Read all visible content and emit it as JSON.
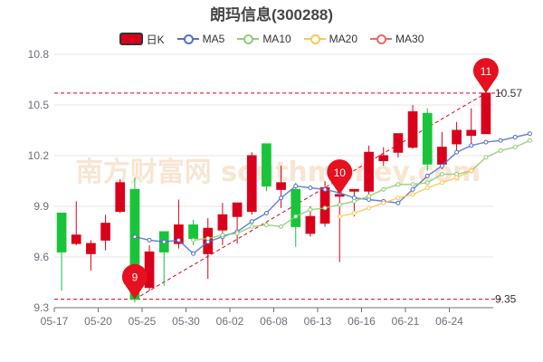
{
  "title": "朗玛信息(300288)",
  "legend": {
    "k": "日K",
    "ma5": "MA5",
    "ma10": "MA10",
    "ma20": "MA20",
    "ma30": "MA30"
  },
  "colors": {
    "up": "#d9001b",
    "down": "#19c43a",
    "ma5": "#5470c6",
    "ma10": "#91cc75",
    "ma20": "#fac858",
    "ma30": "#ee6666",
    "marker": "#e6101f"
  },
  "watermark": "南方财富网 southmoney.com",
  "chart_data": {
    "type": "candlestick",
    "title": "朗玛信息(300288)",
    "ylim": [
      9.3,
      10.8
    ],
    "yticks": [
      9.3,
      9.6,
      9.9,
      10.2,
      10.5,
      10.8
    ],
    "xtick_labels": [
      "05-17",
      "05-20",
      "05-25",
      "05-30",
      "06-02",
      "06-08",
      "06-13",
      "06-16",
      "06-21",
      "06-24"
    ],
    "xtick_index": [
      0,
      3,
      6,
      9,
      12,
      15,
      18,
      21,
      24,
      27
    ],
    "candles": [
      {
        "o": 9.86,
        "c": 9.63,
        "h": 9.86,
        "l": 9.4
      },
      {
        "o": 9.68,
        "c": 9.73,
        "h": 9.93,
        "l": 9.67
      },
      {
        "o": 9.62,
        "c": 9.68,
        "h": 9.7,
        "l": 9.52
      },
      {
        "o": 9.7,
        "c": 9.8,
        "h": 9.85,
        "l": 9.64
      },
      {
        "o": 9.87,
        "c": 10.04,
        "h": 10.06,
        "l": 9.86
      },
      {
        "o": 10.0,
        "c": 9.35,
        "h": 10.07,
        "l": 9.33
      },
      {
        "o": 9.42,
        "c": 9.63,
        "h": 9.67,
        "l": 9.4
      },
      {
        "o": 9.75,
        "c": 9.63,
        "h": 9.75,
        "l": 9.43
      },
      {
        "o": 9.68,
        "c": 9.79,
        "h": 9.94,
        "l": 9.65
      },
      {
        "o": 9.79,
        "c": 9.71,
        "h": 9.82,
        "l": 9.67
      },
      {
        "o": 9.62,
        "c": 9.77,
        "h": 9.83,
        "l": 9.47
      },
      {
        "o": 9.76,
        "c": 9.85,
        "h": 9.92,
        "l": 9.67
      },
      {
        "o": 9.84,
        "c": 9.92,
        "h": 9.92,
        "l": 9.68
      },
      {
        "o": 9.87,
        "c": 10.2,
        "h": 10.22,
        "l": 9.85
      },
      {
        "o": 10.27,
        "c": 10.02,
        "h": 10.27,
        "l": 9.99
      },
      {
        "o": 10.0,
        "c": 10.04,
        "h": 10.14,
        "l": 9.89
      },
      {
        "o": 10.0,
        "c": 9.78,
        "h": 10.04,
        "l": 9.66
      },
      {
        "o": 9.74,
        "c": 9.84,
        "h": 9.9,
        "l": 9.72
      },
      {
        "o": 9.8,
        "c": 10.01,
        "h": 10.05,
        "l": 9.78
      },
      {
        "o": 9.96,
        "c": 9.97,
        "h": 9.98,
        "l": 9.57
      },
      {
        "o": 9.99,
        "c": 10.0,
        "h": 10.0,
        "l": 9.84
      },
      {
        "o": 9.99,
        "c": 10.22,
        "h": 10.26,
        "l": 9.97
      },
      {
        "o": 10.17,
        "c": 10.2,
        "h": 10.25,
        "l": 10.14
      },
      {
        "o": 10.22,
        "c": 10.33,
        "h": 10.33,
        "l": 10.19
      },
      {
        "o": 10.25,
        "c": 10.46,
        "h": 10.5,
        "l": 10.24
      },
      {
        "o": 10.45,
        "c": 10.15,
        "h": 10.48,
        "l": 10.11
      },
      {
        "o": 10.15,
        "c": 10.25,
        "h": 10.34,
        "l": 10.12
      },
      {
        "o": 10.27,
        "c": 10.35,
        "h": 10.4,
        "l": 10.23
      },
      {
        "o": 10.32,
        "c": 10.35,
        "h": 10.48,
        "l": 10.26
      },
      {
        "o": 10.33,
        "c": 10.57,
        "h": 10.58,
        "l": 10.33
      }
    ],
    "series": [
      {
        "name": "MA5",
        "start": 5,
        "values": [
          9.72,
          9.7,
          9.69,
          9.7,
          9.62,
          9.69,
          9.72,
          9.75,
          9.81,
          9.86,
          9.95,
          10.02,
          10.01,
          10.0,
          9.98,
          9.95,
          9.94,
          9.93,
          9.92,
          10.0,
          10.08,
          10.14,
          10.22,
          10.26,
          10.28,
          10.29,
          10.31,
          10.33
        ]
      },
      {
        "name": "MA10",
        "start": 9,
        "values": [
          9.7,
          9.71,
          9.73,
          9.74,
          9.78,
          9.79,
          9.78,
          9.84,
          9.88,
          9.89,
          9.91,
          9.93,
          9.96,
          10.0,
          10.03,
          10.03,
          10.04,
          10.09,
          10.09,
          10.11,
          10.19,
          10.23,
          10.25,
          10.29
        ]
      },
      {
        "name": "MA20",
        "start": 19,
        "values": [
          9.84,
          9.86,
          9.89,
          9.92,
          9.95,
          9.97,
          10.01,
          10.04,
          10.07,
          10.11
        ]
      },
      {
        "name": "MA30",
        "start": 30,
        "values": []
      }
    ],
    "high_line": 10.57,
    "low_line": 9.35,
    "high_label": "10.57",
    "low_label": "9.35",
    "markers": [
      {
        "label": "9",
        "index": 5,
        "value": 9.35
      },
      {
        "label": "10",
        "index": 19,
        "value": 9.97
      },
      {
        "label": "11",
        "index": 29,
        "value": 10.57
      }
    ]
  }
}
